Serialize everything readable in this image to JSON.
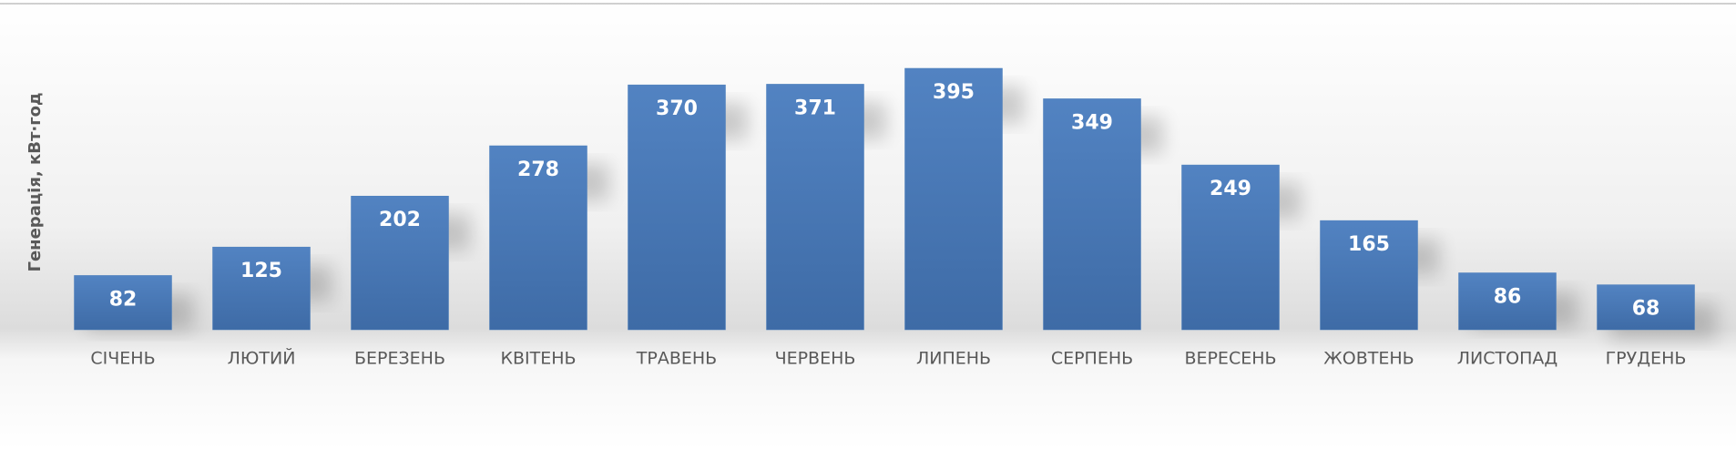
{
  "chart_data": {
    "type": "bar",
    "y_label": "Генерація, кВт·год",
    "categories": [
      "СІЧЕНЬ",
      "ЛЮТИЙ",
      "БЕРЕЗЕНЬ",
      "КВІТЕНЬ",
      "ТРАВЕНЬ",
      "ЧЕРВЕНЬ",
      "ЛИПЕНЬ",
      "СЕРПЕНЬ",
      "ВЕРЕСЕНЬ",
      "ЖОВТЕНЬ",
      "ЛИСТОПАД",
      "ГРУДЕНЬ"
    ],
    "values": [
      82,
      125,
      202,
      278,
      370,
      371,
      395,
      349,
      249,
      165,
      86,
      68
    ],
    "color": "#4a7ebb"
  }
}
